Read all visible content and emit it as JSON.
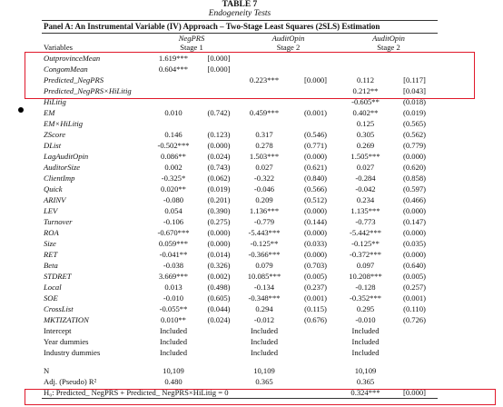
{
  "title": "TABLE 7",
  "subtitle": "Endogeneity Tests",
  "panel": "Panel A: An Instrumental Variable (IV) Approach – Two-Stage Least Squares (2SLS) Estimation",
  "groups": [
    "NegPRS",
    "AuditOpin",
    "AuditOpin"
  ],
  "header": [
    "Variables",
    "Stage 1",
    "Stage 2",
    "Stage 2"
  ],
  "rows": [
    {
      "variable": "OutprovinceMean",
      "s1": "1.619***",
      "s1p": "[0.000]"
    },
    {
      "variable": "CongomMean",
      "s1": "0.604***",
      "s1p": "[0.000]"
    },
    {
      "variable": "Predicted_NegPRS",
      "s2": "0.223***",
      "s2p": "[0.000]",
      "s3": "0.112",
      "s3p": "[0.117]"
    },
    {
      "variable": "Predicted_NegPRS×HiLitig",
      "s3": "0.212**",
      "s3p": "[0.043]"
    },
    {
      "variable": "HiLitig",
      "s3": "-0.605**",
      "s3p": "(0.018)"
    },
    {
      "variable": "EM",
      "s1": "0.010",
      "s1p": "(0.742)",
      "s2": "0.459***",
      "s2p": "(0.001)",
      "s3": "0.402**",
      "s3p": "(0.019)"
    },
    {
      "variable": "EM×HiLitig",
      "s3": "0.125",
      "s3p": "(0.565)"
    },
    {
      "variable": "ZScore",
      "s1": "0.146",
      "s1p": "(0.123)",
      "s2": "0.317",
      "s2p": "(0.546)",
      "s3": "0.305",
      "s3p": "(0.562)"
    },
    {
      "variable": "DList",
      "s1": "-0.502***",
      "s1p": "(0.000)",
      "s2": "0.278",
      "s2p": "(0.771)",
      "s3": "0.269",
      "s3p": "(0.779)"
    },
    {
      "variable": "LagAuditOpin",
      "s1": "0.086**",
      "s1p": "(0.024)",
      "s2": "1.503***",
      "s2p": "(0.000)",
      "s3": "1.505***",
      "s3p": "(0.000)"
    },
    {
      "variable": "AuditorSize",
      "s1": "0.002",
      "s1p": "(0.743)",
      "s2": "0.027",
      "s2p": "(0.621)",
      "s3": "0.027",
      "s3p": "(0.620)"
    },
    {
      "variable": "ClientImp",
      "s1": "-0.325*",
      "s1p": "(0.062)",
      "s2": "-0.322",
      "s2p": "(0.840)",
      "s3": "-0.284",
      "s3p": "(0.858)"
    },
    {
      "variable": "Quick",
      "s1": "0.020**",
      "s1p": "(0.019)",
      "s2": "-0.046",
      "s2p": "(0.566)",
      "s3": "-0.042",
      "s3p": "(0.597)"
    },
    {
      "variable": "ARINV",
      "s1": "-0.080",
      "s1p": "(0.201)",
      "s2": "0.209",
      "s2p": "(0.512)",
      "s3": "0.234",
      "s3p": "(0.466)"
    },
    {
      "variable": "LEV",
      "s1": "0.054",
      "s1p": "(0.390)",
      "s2": "1.136***",
      "s2p": "(0.000)",
      "s3": "1.135***",
      "s3p": "(0.000)"
    },
    {
      "variable": "Turnover",
      "s1": "-0.106",
      "s1p": "(0.275)",
      "s2": "-0.779",
      "s2p": "(0.144)",
      "s3": "-0.773",
      "s3p": "(0.147)"
    },
    {
      "variable": "ROA",
      "s1": "-0.670***",
      "s1p": "(0.000)",
      "s2": "-5.443***",
      "s2p": "(0.000)",
      "s3": "-5.442***",
      "s3p": "(0.000)"
    },
    {
      "variable": "Size",
      "s1": "0.059***",
      "s1p": "(0.000)",
      "s2": "-0.125**",
      "s2p": "(0.033)",
      "s3": "-0.125**",
      "s3p": "(0.035)"
    },
    {
      "variable": "RET",
      "s1": "-0.041**",
      "s1p": "(0.014)",
      "s2": "-0.366***",
      "s2p": "(0.000)",
      "s3": "-0.372***",
      "s3p": "(0.000)"
    },
    {
      "variable": "Beta",
      "s1": "-0.038",
      "s1p": "(0.326)",
      "s2": "0.079",
      "s2p": "(0.703)",
      "s3": "0.097",
      "s3p": "(0.640)"
    },
    {
      "variable": "STDRET",
      "s1": "3.669***",
      "s1p": "(0.002)",
      "s2": "10.085***",
      "s2p": "(0.005)",
      "s3": "10.208***",
      "s3p": "(0.005)"
    },
    {
      "variable": "Local",
      "s1": "0.013",
      "s1p": "(0.498)",
      "s2": "-0.134",
      "s2p": "(0.237)",
      "s3": "-0.128",
      "s3p": "(0.257)"
    },
    {
      "variable": "SOE",
      "s1": "-0.010",
      "s1p": "(0.605)",
      "s2": "-0.348***",
      "s2p": "(0.001)",
      "s3": "-0.352***",
      "s3p": "(0.001)"
    },
    {
      "variable": "CrossList",
      "s1": "-0.055**",
      "s1p": "(0.044)",
      "s2": "0.294",
      "s2p": "(0.115)",
      "s3": "0.295",
      "s3p": "(0.110)"
    },
    {
      "variable": "MKTIZATION",
      "s1": "0.010**",
      "s1p": "(0.024)",
      "s2": "-0.012",
      "s2p": "(0.676)",
      "s3": "-0.010",
      "s3p": "(0.726)"
    },
    {
      "variable": "Intercept",
      "s1": "Included",
      "s2": "Included",
      "s3": "Included"
    },
    {
      "variable": "Year dummies",
      "s1": "Included",
      "s2": "Included",
      "s3": "Included"
    },
    {
      "variable": "Industry dummies",
      "s1": "Included",
      "s2": "Included",
      "s3": "Included"
    }
  ],
  "summary": [
    {
      "variable": "N",
      "s1": "10,109",
      "s2": "10,109",
      "s3": "10,109"
    },
    {
      "variable": "Adj. (Pseudo) R²",
      "s1": "0.480",
      "s2": "0.365",
      "s3": "0.365"
    }
  ],
  "hypothesis": {
    "label": "H₀: Predicted_ NegPRS + Predicted_ NegPRS×HiLitig = 0",
    "s3": "0.324***",
    "s3p": "[0.000]"
  }
}
